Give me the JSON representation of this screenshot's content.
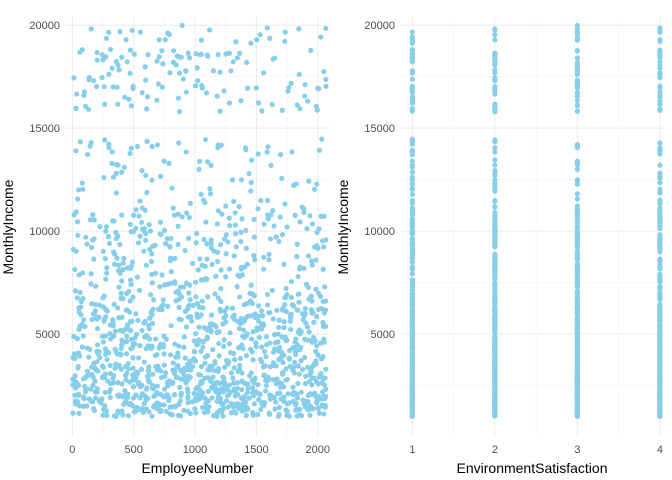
{
  "style": {
    "point_color": "#87CEEB",
    "background": "#ffffff",
    "grid_major": "#ebebeb",
    "grid_minor": "#f3f3f3",
    "tick_text": "#4d4d4d",
    "axis_title_text": "#000000"
  },
  "chart_data": [
    {
      "type": "scatter",
      "xlabel": "EmployeeNumber",
      "ylabel": "MonthlyIncome",
      "xlim": [
        -60,
        2100
      ],
      "ylim": [
        0,
        20400
      ],
      "xticks": [
        0,
        500,
        1000,
        1500,
        2000
      ],
      "yticks": [
        5000,
        10000,
        15000,
        20000
      ],
      "grid": true,
      "legend": "none",
      "density_bands": [
        {
          "y_range": [
            1000,
            3500
          ],
          "weight": 0.38
        },
        {
          "y_range": [
            3500,
            7000
          ],
          "weight": 0.3
        },
        {
          "y_range": [
            7000,
            11000
          ],
          "weight": 0.16
        },
        {
          "y_range": [
            11000,
            14500
          ],
          "weight": 0.06
        },
        {
          "y_range": [
            15800,
            20000
          ],
          "weight": 0.1
        }
      ],
      "n_points": 1470,
      "x_range": [
        1,
        2068
      ],
      "series": [
        {
          "values": []
        }
      ]
    },
    {
      "type": "scatter",
      "xlabel": "EnvironmentSatisfaction",
      "ylabel": "MonthlyIncome",
      "xlim": [
        0.85,
        4.05
      ],
      "ylim": [
        0,
        20400
      ],
      "xticks": [
        1,
        2,
        3,
        4
      ],
      "yticks": [
        5000,
        10000,
        15000,
        20000
      ],
      "grid": true,
      "legend": "none",
      "categories": [
        1,
        2,
        3,
        4
      ],
      "income_range": [
        1009,
        19999
      ],
      "series": [
        {
          "values": []
        }
      ]
    }
  ]
}
